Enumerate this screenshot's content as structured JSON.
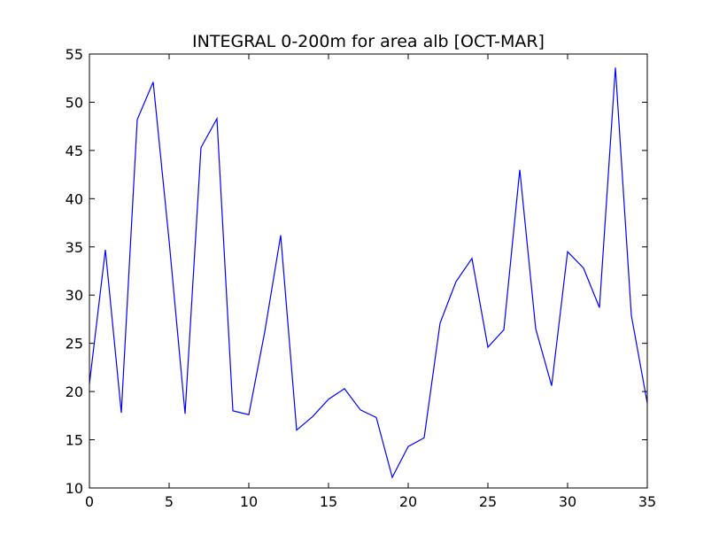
{
  "chart_data": {
    "type": "line",
    "title": "INTEGRAL 0-200m for area alb [OCT-MAR]",
    "xlabel": "",
    "ylabel": "",
    "xlim": [
      0,
      35
    ],
    "ylim": [
      10,
      55
    ],
    "x_ticks": [
      0,
      5,
      10,
      15,
      20,
      25,
      30,
      35
    ],
    "y_ticks": [
      10,
      15,
      20,
      25,
      30,
      35,
      40,
      45,
      50,
      55
    ],
    "grid": false,
    "legend": "none",
    "series": [
      {
        "color": "#0000ff",
        "x": [
          0,
          1,
          2,
          3,
          4,
          5,
          6,
          7,
          8,
          9,
          10,
          11,
          12,
          13,
          14,
          15,
          16,
          17,
          18,
          19,
          20,
          21,
          22,
          23,
          24,
          25,
          26,
          27,
          28,
          29,
          30,
          31,
          32,
          33,
          34,
          35
        ],
        "values": [
          20.8,
          34.7,
          17.8,
          48.2,
          52.1,
          35.6,
          17.7,
          45.3,
          48.3,
          18.0,
          17.6,
          26.2,
          36.2,
          16.0,
          17.4,
          19.2,
          20.3,
          18.1,
          17.3,
          11.1,
          14.3,
          15.2,
          27.1,
          31.4,
          33.8,
          24.6,
          26.4,
          43.0,
          26.5,
          20.6,
          34.5,
          32.8,
          28.7,
          53.6,
          27.9,
          18.8
        ]
      }
    ]
  }
}
